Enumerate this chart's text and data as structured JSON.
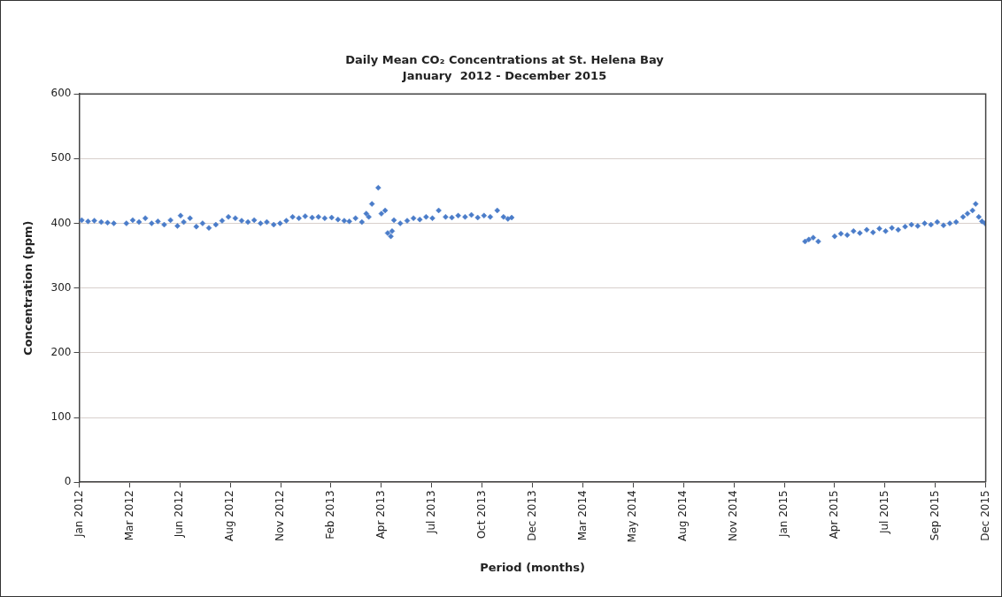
{
  "chart_data": {
    "type": "scatter",
    "title": "Daily Mean CO₂ Concentrations at St. Helena Bay",
    "subtitle": "January  2012 - December 2015",
    "xlabel": "Period (months)",
    "ylabel": "Concentration (ppm)",
    "x": [
      "2012-01-05",
      "2012-01-15",
      "2012-01-25",
      "2012-02-05",
      "2012-02-15",
      "2012-02-25",
      "2012-03-16",
      "2012-03-26",
      "2012-04-05",
      "2012-04-15",
      "2012-04-25",
      "2012-05-05",
      "2012-05-15",
      "2012-05-25",
      "2012-06-05",
      "2012-06-10",
      "2012-06-15",
      "2012-06-25",
      "2012-07-05",
      "2012-07-15",
      "2012-07-25",
      "2012-08-05",
      "2012-08-15",
      "2012-08-25",
      "2012-09-05",
      "2012-09-15",
      "2012-09-25",
      "2012-10-05",
      "2012-10-15",
      "2012-10-25",
      "2012-11-05",
      "2012-11-15",
      "2012-11-25",
      "2012-12-05",
      "2012-12-15",
      "2012-12-25",
      "2013-01-05",
      "2013-01-15",
      "2013-01-25",
      "2013-02-05",
      "2013-02-15",
      "2013-02-25",
      "2013-03-05",
      "2013-03-15",
      "2013-03-25",
      "2013-04-01",
      "2013-04-05",
      "2013-04-10",
      "2013-04-20",
      "2013-04-25",
      "2013-05-01",
      "2013-05-05",
      "2013-05-10",
      "2013-05-12",
      "2013-05-15",
      "2013-05-25",
      "2013-06-05",
      "2013-06-15",
      "2013-06-25",
      "2013-07-05",
      "2013-07-15",
      "2013-07-25",
      "2013-08-05",
      "2013-08-15",
      "2013-08-25",
      "2013-09-05",
      "2013-09-15",
      "2013-09-25",
      "2013-10-05",
      "2013-10-15",
      "2013-10-26",
      "2013-11-05",
      "2013-11-12",
      "2013-11-18",
      "2015-02-27",
      "2015-03-05",
      "2015-03-12",
      "2015-03-20",
      "2015-04-15",
      "2015-04-25",
      "2015-05-05",
      "2015-05-15",
      "2015-05-25",
      "2015-06-05",
      "2015-06-15",
      "2015-06-25",
      "2015-07-05",
      "2015-07-15",
      "2015-07-25",
      "2015-08-05",
      "2015-08-15",
      "2015-08-25",
      "2015-09-05",
      "2015-09-15",
      "2015-09-25",
      "2015-10-05",
      "2015-10-15",
      "2015-10-25",
      "2015-11-05",
      "2015-11-12",
      "2015-11-20",
      "2015-11-25",
      "2015-11-30",
      "2015-12-05",
      "2015-12-10"
    ],
    "series": [
      {
        "color": "#4a7cc9",
        "values": [
          405,
          403,
          404,
          402,
          401,
          400,
          400,
          405,
          402,
          408,
          400,
          403,
          398,
          405,
          396,
          412,
          402,
          408,
          395,
          400,
          393,
          398,
          404,
          410,
          408,
          404,
          402,
          405,
          400,
          402,
          398,
          400,
          404,
          410,
          408,
          411,
          409,
          410,
          408,
          409,
          406,
          404,
          403,
          408,
          402,
          415,
          410,
          430,
          455,
          415,
          420,
          385,
          380,
          388,
          405,
          400,
          404,
          408,
          406,
          410,
          408,
          420,
          410,
          409,
          412,
          410,
          413,
          409,
          412,
          410,
          420,
          410,
          407,
          409,
          372,
          375,
          378,
          372,
          380,
          384,
          382,
          388,
          385,
          390,
          386,
          392,
          388,
          393,
          390,
          395,
          398,
          396,
          400,
          398,
          402,
          397,
          400,
          402,
          410,
          415,
          420,
          430,
          410,
          403,
          400
        ]
      }
    ],
    "xlim": [
      "2012-01-01",
      "2015-12-11"
    ],
    "xticks": [
      {
        "value": "2012-01-01",
        "label": "Jan 2012"
      },
      {
        "value": "2012-03-21",
        "label": "Mar 2012"
      },
      {
        "value": "2012-06-09",
        "label": "Jun 2012"
      },
      {
        "value": "2012-08-28",
        "label": "Aug 2012"
      },
      {
        "value": "2012-11-16",
        "label": "Nov 2012"
      },
      {
        "value": "2013-02-04",
        "label": "Feb 2013"
      },
      {
        "value": "2013-04-25",
        "label": "Apr 2013"
      },
      {
        "value": "2013-07-14",
        "label": "Jul 2013"
      },
      {
        "value": "2013-10-02",
        "label": "Oct 2013"
      },
      {
        "value": "2013-12-21",
        "label": "Dec 2013"
      },
      {
        "value": "2014-03-11",
        "label": "Mar 2014"
      },
      {
        "value": "2014-05-30",
        "label": "May 2014"
      },
      {
        "value": "2014-08-18",
        "label": "Aug 2014"
      },
      {
        "value": "2014-11-06",
        "label": "Nov 2014"
      },
      {
        "value": "2015-01-25",
        "label": "Jan 2015"
      },
      {
        "value": "2015-04-15",
        "label": "Apr 2015"
      },
      {
        "value": "2015-07-04",
        "label": "Jul 2015"
      },
      {
        "value": "2015-09-22",
        "label": "Sep 2015"
      },
      {
        "value": "2015-12-11",
        "label": "Dec 2015"
      }
    ],
    "ylim": [
      0,
      600
    ],
    "yticks": [
      0,
      100,
      200,
      300,
      400,
      500,
      600
    ],
    "grid": "y",
    "marker": "diamond",
    "legend": false
  }
}
